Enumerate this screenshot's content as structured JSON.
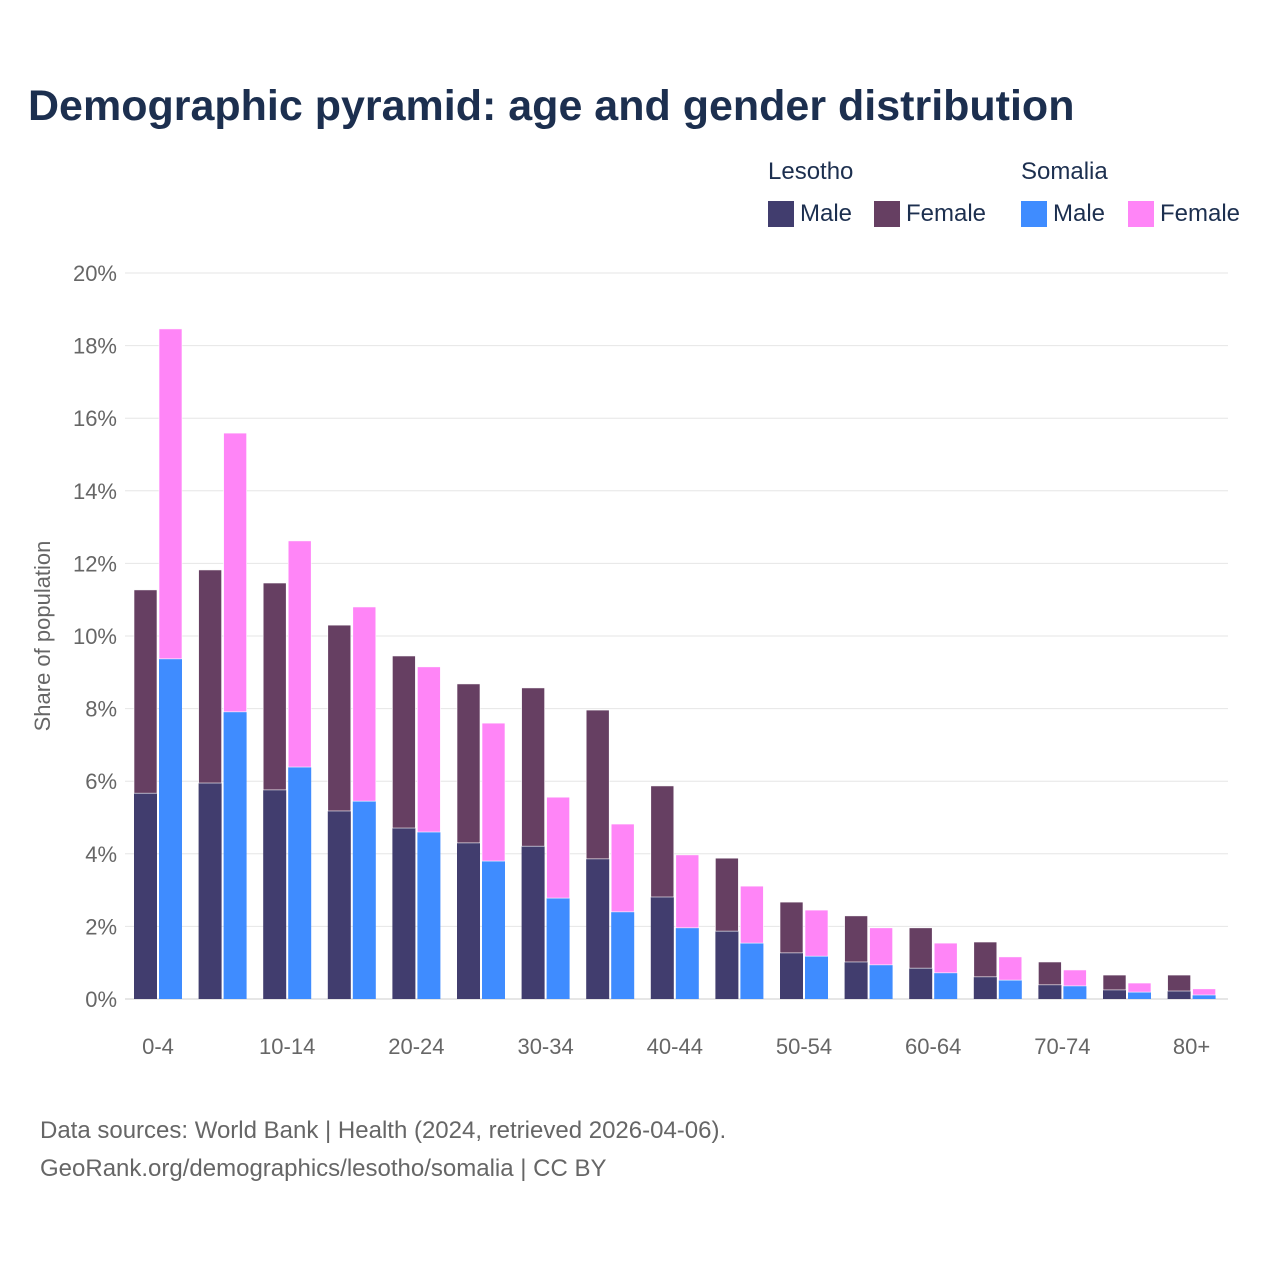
{
  "chart_data": {
    "type": "bar",
    "title": "Demographic pyramid: age and gender distribution",
    "ylabel": "Share of population",
    "xlabel": "",
    "ylim": [
      0,
      20
    ],
    "yticks": [
      "0%",
      "2%",
      "4%",
      "6%",
      "8%",
      "10%",
      "12%",
      "14%",
      "16%",
      "18%",
      "20%"
    ],
    "categories": [
      "0-4",
      "5-9",
      "10-14",
      "15-19",
      "20-24",
      "25-29",
      "30-34",
      "35-39",
      "40-44",
      "45-49",
      "50-54",
      "55-59",
      "60-64",
      "65-69",
      "70-74",
      "75-79",
      "80+"
    ],
    "xtick_labels": [
      "0-4",
      "10-14",
      "20-24",
      "30-34",
      "40-44",
      "50-54",
      "60-64",
      "70-74",
      "80+"
    ],
    "legend": {
      "position": "top-right",
      "groups": [
        {
          "name": "Lesotho",
          "items": [
            "Male",
            "Female"
          ]
        },
        {
          "name": "Somalia",
          "items": [
            "Male",
            "Female"
          ]
        }
      ]
    },
    "series": [
      {
        "country": "Lesotho",
        "name": "Male",
        "color": "#413d6e",
        "values": [
          5.67,
          5.95,
          5.76,
          5.18,
          4.71,
          4.3,
          4.21,
          3.86,
          2.81,
          1.87,
          1.27,
          1.02,
          0.85,
          0.61,
          0.39,
          0.25,
          0.22
        ]
      },
      {
        "country": "Lesotho",
        "name": "Female",
        "color": "#663f62",
        "values": [
          5.6,
          5.87,
          5.7,
          5.12,
          4.74,
          4.38,
          4.36,
          4.1,
          3.06,
          2.01,
          1.4,
          1.27,
          1.11,
          0.96,
          0.63,
          0.41,
          0.44
        ]
      },
      {
        "country": "Somalia",
        "name": "Male",
        "color": "#3f8cff",
        "values": [
          9.37,
          7.91,
          6.39,
          5.45,
          4.6,
          3.8,
          2.78,
          2.4,
          1.96,
          1.54,
          1.18,
          0.94,
          0.72,
          0.52,
          0.36,
          0.19,
          0.11
        ]
      },
      {
        "country": "Somalia",
        "name": "Female",
        "color": "#ff85f7",
        "values": [
          9.09,
          7.68,
          6.23,
          5.35,
          4.55,
          3.8,
          2.78,
          2.42,
          2.01,
          1.57,
          1.27,
          1.02,
          0.82,
          0.64,
          0.44,
          0.25,
          0.17
        ]
      }
    ]
  },
  "source": {
    "line1": "Data sources: World Bank | Health (2024, retrieved 2026-04-06).",
    "line2": "GeoRank.org/demographics/lesotho/somalia | CC BY"
  }
}
